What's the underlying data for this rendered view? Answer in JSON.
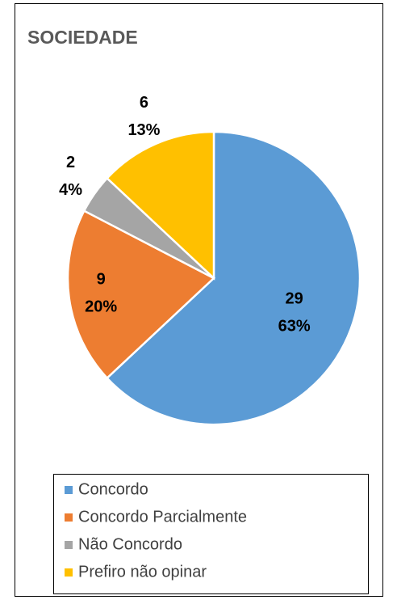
{
  "chart_data": {
    "type": "pie",
    "title": "SOCIEDADE",
    "categories": [
      "Concordo",
      "Concordo Parcialmente",
      "Não Concordo",
      "Prefiro não opinar"
    ],
    "values": [
      29,
      9,
      2,
      6
    ],
    "percents": [
      63,
      20,
      4,
      13
    ],
    "percent_labels": [
      "63%",
      "20%",
      "4%",
      "13%"
    ],
    "colors": [
      "#5b9bd5",
      "#ed7d31",
      "#a5a5a5",
      "#ffc000"
    ],
    "legend": "bottom"
  }
}
